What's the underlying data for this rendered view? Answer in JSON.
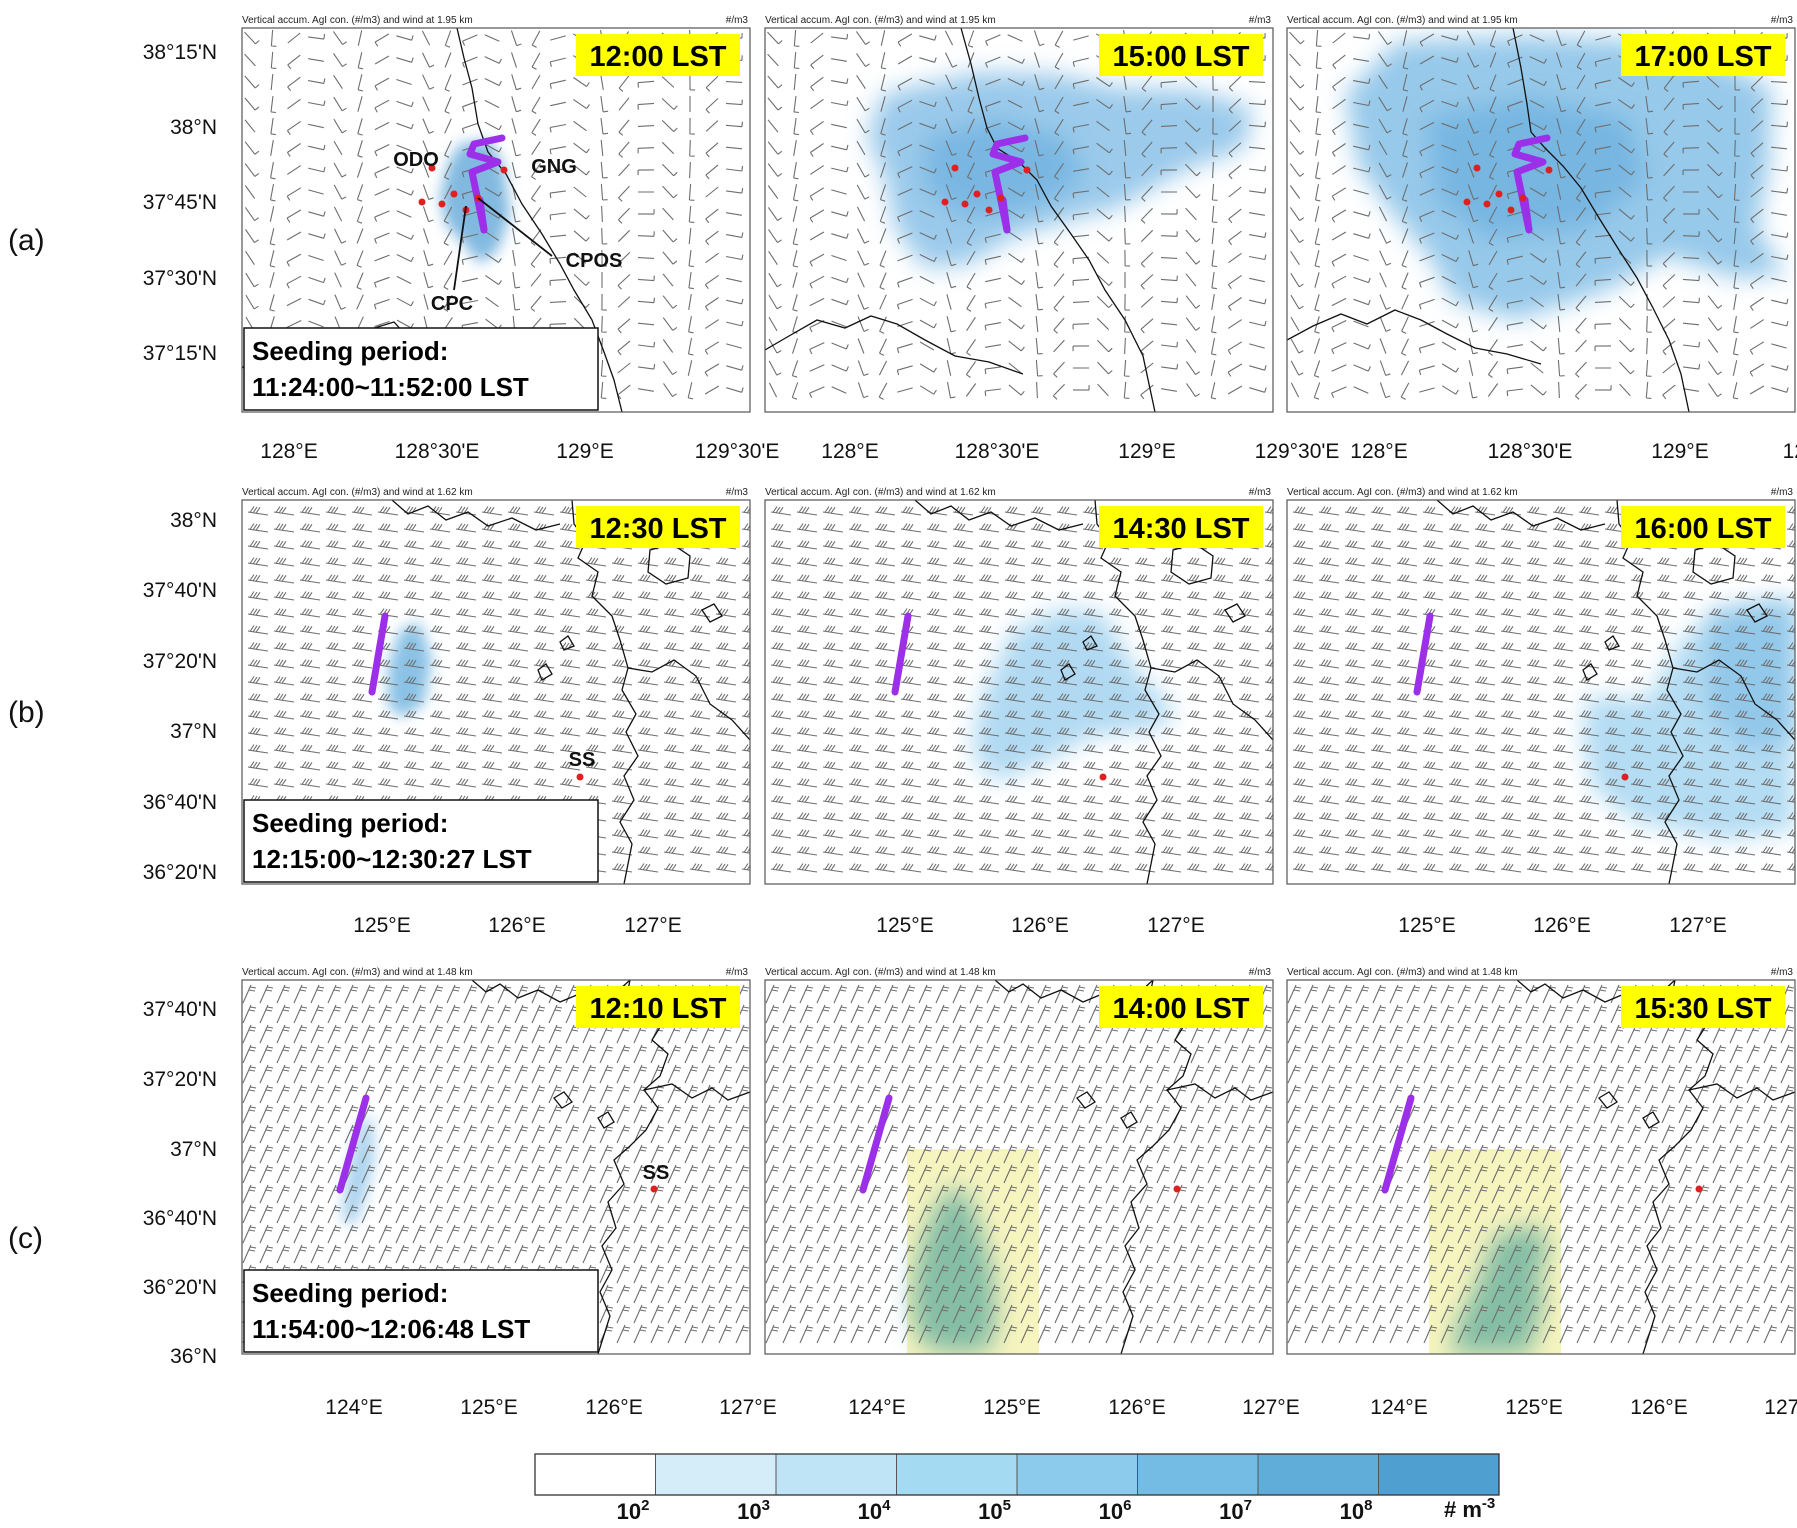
{
  "header_text": {
    "a": "Vertical accum. AgI con. (#/m3) and wind at 1.95 km",
    "b": "Vertical accum. AgI con. (#/m3) and wind at 1.62 km",
    "c": "Vertical accum. AgI con. (#/m3) and wind at 1.48 km"
  },
  "units_label": "#/m3",
  "rows": [
    {
      "label": "(a)",
      "lat_ticks": [
        "38°15'N",
        "38°N",
        "37°45'N",
        "37°30'N",
        "37°15'N"
      ],
      "lon_ticks": [
        "128°E",
        "128°30'E",
        "129°E",
        "129°30'E"
      ],
      "seeding": [
        "Seeding period:",
        "11:24:00~11:52:00 LST"
      ],
      "sites": [
        "ODO",
        "GNG",
        "CPOS",
        "CPC"
      ],
      "panels": [
        {
          "time": "12:00 LST",
          "plume_level": 4
        },
        {
          "time": "15:00 LST",
          "plume_level": 4
        },
        {
          "time": "17:00 LST",
          "plume_level": 4
        }
      ]
    },
    {
      "label": "(b)",
      "lat_ticks": [
        "38°N",
        "37°40'N",
        "37°20'N",
        "37°N",
        "36°40'N",
        "36°20'N"
      ],
      "lon_ticks": [
        "125°E",
        "126°E",
        "127°E"
      ],
      "seeding": [
        "Seeding period:",
        "12:15:00~12:30:27 LST"
      ],
      "sites": [
        "SS"
      ],
      "panels": [
        {
          "time": "12:30 LST",
          "plume_level": 3
        },
        {
          "time": "14:30 LST",
          "plume_level": 3
        },
        {
          "time": "16:00 LST",
          "plume_level": 3
        }
      ]
    },
    {
      "label": "(c)",
      "lat_ticks": [
        "37°40'N",
        "37°20'N",
        "37°N",
        "36°40'N",
        "36°20'N",
        "36°N"
      ],
      "lon_ticks": [
        "124°E",
        "125°E",
        "126°E",
        "127°E"
      ],
      "seeding": [
        "Seeding period:",
        "11:54:00~12:06:48 LST"
      ],
      "sites": [
        "SS"
      ],
      "panels": [
        {
          "time": "12:10 LST",
          "plume_level": 3
        },
        {
          "time": "14:00 LST",
          "plume_level": 4
        },
        {
          "time": "15:30 LST",
          "plume_level": 4
        }
      ]
    }
  ],
  "colorbar": {
    "colors": [
      "#ffffff",
      "#d4edf8",
      "#bfe4f5",
      "#a5daf3",
      "#8ccbeb",
      "#74bce4",
      "#60add9",
      "#4f9fd1"
    ],
    "tick_exponents": [
      "2",
      "3",
      "4",
      "5",
      "6",
      "7",
      "8"
    ],
    "tick_base": "10",
    "unit_text": "# m",
    "unit_exp": "-3"
  }
}
